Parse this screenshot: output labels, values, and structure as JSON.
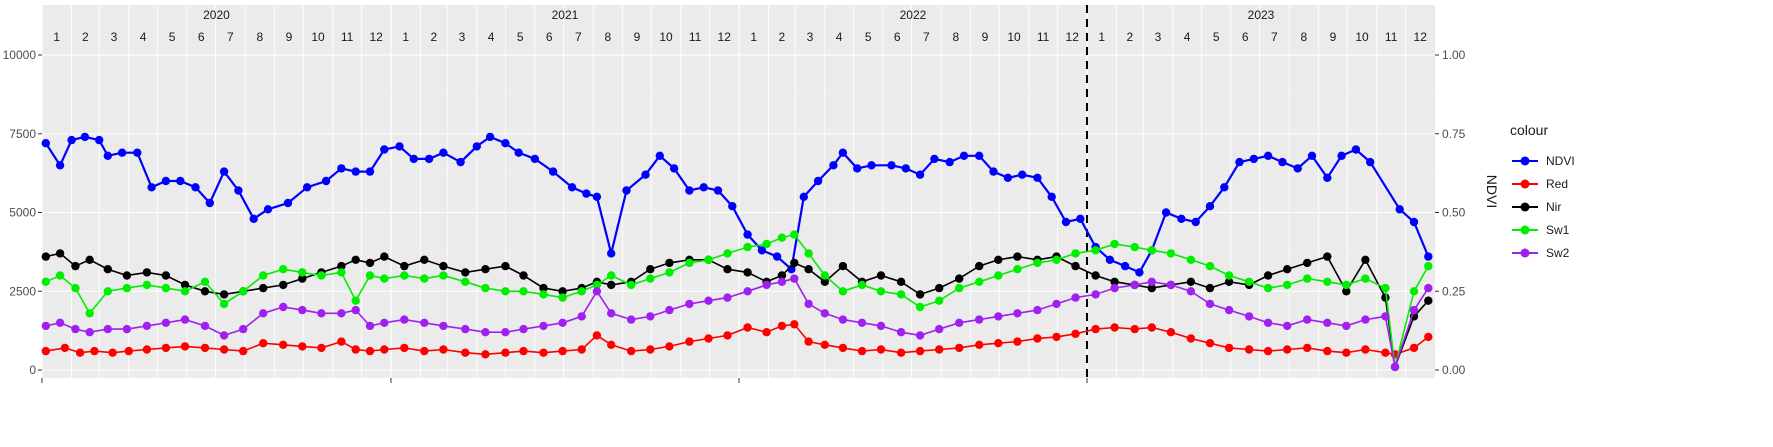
{
  "chart_data": {
    "type": "line",
    "title": "",
    "xlabel": "",
    "ylabel_left": "",
    "ylabel_right": "NDVI",
    "xlim": [
      "2020-01-01",
      "2024-01-01"
    ],
    "ylim_left": [
      0,
      10000
    ],
    "ylim_right": [
      0,
      1
    ],
    "left_ticks": [
      0,
      2500,
      5000,
      7500,
      10000
    ],
    "left_tick_labels": [
      "0",
      "2500",
      "5000",
      "7500",
      "10000"
    ],
    "right_ticks": [
      0,
      0.25,
      0.5,
      0.75,
      1
    ],
    "right_tick_labels": [
      "0.00",
      "0.25",
      "0.50",
      "0.75",
      "1.00"
    ],
    "years": [
      "2020",
      "2021",
      "2022",
      "2023"
    ],
    "months": [
      "1",
      "2",
      "3",
      "4",
      "5",
      "6",
      "7",
      "8",
      "9",
      "10",
      "11",
      "12"
    ],
    "vline_date": "2023-01-01",
    "grid": true,
    "legend": {
      "title": "colour",
      "position": "right"
    },
    "colors": {
      "NDVI": "#0000ff",
      "Red": "#ff0000",
      "Nir": "#000000",
      "Sw1": "#00ee00",
      "Sw2": "#a020f0"
    },
    "series": [
      {
        "name": "NDVI",
        "axis": "right",
        "x": [
          "2020-01-05",
          "2020-01-20",
          "2020-02-01",
          "2020-02-15",
          "2020-03-01",
          "2020-03-10",
          "2020-03-25",
          "2020-04-10",
          "2020-04-25",
          "2020-05-10",
          "2020-05-25",
          "2020-06-10",
          "2020-06-25",
          "2020-07-10",
          "2020-07-25",
          "2020-08-10",
          "2020-08-25",
          "2020-09-15",
          "2020-10-05",
          "2020-10-25",
          "2020-11-10",
          "2020-11-25",
          "2020-12-10",
          "2020-12-25",
          "2021-01-10",
          "2021-01-25",
          "2021-02-10",
          "2021-02-25",
          "2021-03-15",
          "2021-04-01",
          "2021-04-15",
          "2021-05-01",
          "2021-05-15",
          "2021-06-01",
          "2021-06-20",
          "2021-07-10",
          "2021-07-25",
          "2021-08-05",
          "2021-08-20",
          "2021-09-05",
          "2021-09-25",
          "2021-10-10",
          "2021-10-25",
          "2021-11-10",
          "2021-11-25",
          "2021-12-10",
          "2021-12-25",
          "2022-01-10",
          "2022-01-25",
          "2022-02-10",
          "2022-02-25",
          "2022-03-10",
          "2022-03-25",
          "2022-04-10",
          "2022-04-20",
          "2022-05-05",
          "2022-05-20",
          "2022-06-10",
          "2022-06-25",
          "2022-07-10",
          "2022-07-25",
          "2022-08-10",
          "2022-08-25",
          "2022-09-10",
          "2022-09-25",
          "2022-10-10",
          "2022-10-25",
          "2022-11-10",
          "2022-11-25",
          "2022-12-10",
          "2022-12-25",
          "2023-01-10",
          "2023-01-25",
          "2023-02-10",
          "2023-02-25",
          "2023-03-10",
          "2023-03-25",
          "2023-04-10",
          "2023-04-25",
          "2023-05-10",
          "2023-05-25",
          "2023-06-10",
          "2023-06-25",
          "2023-07-10",
          "2023-07-25",
          "2023-08-10",
          "2023-08-25",
          "2023-09-10",
          "2023-09-25",
          "2023-10-10",
          "2023-10-25",
          "2023-11-25",
          "2023-12-10",
          "2023-12-25"
        ],
        "values": [
          0.72,
          0.65,
          0.73,
          0.74,
          0.73,
          0.68,
          0.69,
          0.69,
          0.58,
          0.6,
          0.6,
          0.58,
          0.53,
          0.63,
          0.57,
          0.48,
          0.51,
          0.53,
          0.58,
          0.6,
          0.64,
          0.63,
          0.63,
          0.7,
          0.71,
          0.67,
          0.67,
          0.69,
          0.66,
          0.71,
          0.74,
          0.72,
          0.69,
          0.67,
          0.63,
          0.58,
          0.56,
          0.55,
          0.37,
          0.57,
          0.62,
          0.68,
          0.64,
          0.57,
          0.58,
          0.57,
          0.52,
          0.43,
          0.38,
          0.36,
          0.32,
          0.55,
          0.6,
          0.65,
          0.69,
          0.64,
          0.65,
          0.65,
          0.64,
          0.62,
          0.67,
          0.66,
          0.68,
          0.68,
          0.63,
          0.61,
          0.62,
          0.61,
          0.55,
          0.47,
          0.48,
          0.39,
          0.35,
          0.33,
          0.31,
          0.38,
          0.5,
          0.48,
          0.47,
          0.52,
          0.58,
          0.66,
          0.67,
          0.68,
          0.66,
          0.64,
          0.68,
          0.61,
          0.68,
          0.7,
          0.66,
          0.51,
          0.47,
          0.36
        ]
      },
      {
        "name": "Red",
        "axis": "left",
        "x": [
          "2020-01-05",
          "2020-01-25",
          "2020-02-10",
          "2020-02-25",
          "2020-03-15",
          "2020-04-01",
          "2020-04-20",
          "2020-05-10",
          "2020-05-30",
          "2020-06-20",
          "2020-07-10",
          "2020-07-30",
          "2020-08-20",
          "2020-09-10",
          "2020-09-30",
          "2020-10-20",
          "2020-11-10",
          "2020-11-25",
          "2020-12-10",
          "2020-12-25",
          "2021-01-15",
          "2021-02-05",
          "2021-02-25",
          "2021-03-20",
          "2021-04-10",
          "2021-05-01",
          "2021-05-20",
          "2021-06-10",
          "2021-06-30",
          "2021-07-20",
          "2021-08-05",
          "2021-08-20",
          "2021-09-10",
          "2021-09-30",
          "2021-10-20",
          "2021-11-10",
          "2021-11-30",
          "2021-12-20",
          "2022-01-10",
          "2022-01-30",
          "2022-02-15",
          "2022-02-28",
          "2022-03-15",
          "2022-04-01",
          "2022-04-20",
          "2022-05-10",
          "2022-05-30",
          "2022-06-20",
          "2022-07-10",
          "2022-07-30",
          "2022-08-20",
          "2022-09-10",
          "2022-09-30",
          "2022-10-20",
          "2022-11-10",
          "2022-11-30",
          "2022-12-20",
          "2023-01-10",
          "2023-01-30",
          "2023-02-20",
          "2023-03-10",
          "2023-03-30",
          "2023-04-20",
          "2023-05-10",
          "2023-05-30",
          "2023-06-20",
          "2023-07-10",
          "2023-07-30",
          "2023-08-20",
          "2023-09-10",
          "2023-09-30",
          "2023-10-20",
          "2023-11-10",
          "2023-11-20",
          "2023-12-10",
          "2023-12-25"
        ],
        "values": [
          600,
          700,
          550,
          600,
          550,
          600,
          650,
          700,
          750,
          700,
          650,
          600,
          850,
          800,
          750,
          700,
          900,
          650,
          600,
          650,
          700,
          600,
          650,
          550,
          500,
          550,
          600,
          550,
          600,
          650,
          1100,
          800,
          600,
          650,
          750,
          900,
          1000,
          1100,
          1350,
          1200,
          1400,
          1450,
          900,
          800,
          700,
          600,
          650,
          550,
          600,
          650,
          700,
          800,
          850,
          900,
          1000,
          1050,
          1150,
          1300,
          1350,
          1300,
          1350,
          1200,
          1000,
          850,
          700,
          650,
          600,
          650,
          700,
          600,
          550,
          650,
          550,
          500,
          700,
          1050
        ]
      },
      {
        "name": "Nir",
        "axis": "left",
        "x": [
          "2020-01-05",
          "2020-01-20",
          "2020-02-05",
          "2020-02-20",
          "2020-03-10",
          "2020-03-30",
          "2020-04-20",
          "2020-05-10",
          "2020-05-30",
          "2020-06-20",
          "2020-07-10",
          "2020-07-30",
          "2020-08-20",
          "2020-09-10",
          "2020-09-30",
          "2020-10-20",
          "2020-11-10",
          "2020-11-25",
          "2020-12-10",
          "2020-12-25",
          "2021-01-15",
          "2021-02-05",
          "2021-02-25",
          "2021-03-20",
          "2021-04-10",
          "2021-05-01",
          "2021-05-20",
          "2021-06-10",
          "2021-06-30",
          "2021-07-20",
          "2021-08-05",
          "2021-08-20",
          "2021-09-10",
          "2021-09-30",
          "2021-10-20",
          "2021-11-10",
          "2021-11-30",
          "2021-12-20",
          "2022-01-10",
          "2022-01-30",
          "2022-02-15",
          "2022-02-28",
          "2022-03-15",
          "2022-04-01",
          "2022-04-20",
          "2022-05-10",
          "2022-05-30",
          "2022-06-20",
          "2022-07-10",
          "2022-07-30",
          "2022-08-20",
          "2022-09-10",
          "2022-09-30",
          "2022-10-20",
          "2022-11-10",
          "2022-11-30",
          "2022-12-20",
          "2023-01-10",
          "2023-01-30",
          "2023-02-20",
          "2023-03-10",
          "2023-03-30",
          "2023-04-20",
          "2023-05-10",
          "2023-05-30",
          "2023-06-20",
          "2023-07-10",
          "2023-07-30",
          "2023-08-20",
          "2023-09-10",
          "2023-09-30",
          "2023-10-20",
          "2023-11-10",
          "2023-11-20",
          "2023-12-10",
          "2023-12-25"
        ],
        "values": [
          3600,
          3700,
          3300,
          3500,
          3200,
          3000,
          3100,
          3000,
          2700,
          2500,
          2400,
          2500,
          2600,
          2700,
          2900,
          3100,
          3300,
          3500,
          3400,
          3600,
          3300,
          3500,
          3300,
          3100,
          3200,
          3300,
          3000,
          2600,
          2500,
          2600,
          2800,
          2700,
          2800,
          3200,
          3400,
          3500,
          3500,
          3200,
          3100,
          2800,
          3000,
          3400,
          3200,
          2800,
          3300,
          2800,
          3000,
          2800,
          2400,
          2600,
          2900,
          3300,
          3500,
          3600,
          3500,
          3600,
          3300,
          3000,
          2800,
          2700,
          2600,
          2700,
          2800,
          2600,
          2800,
          2700,
          3000,
          3200,
          3400,
          3600,
          2500,
          3500,
          2300,
          100,
          1700,
          2200
        ]
      },
      {
        "name": "Sw1",
        "axis": "left",
        "x": [
          "2020-01-05",
          "2020-01-20",
          "2020-02-05",
          "2020-02-20",
          "2020-03-10",
          "2020-03-30",
          "2020-04-20",
          "2020-05-10",
          "2020-05-30",
          "2020-06-20",
          "2020-07-10",
          "2020-07-30",
          "2020-08-20",
          "2020-09-10",
          "2020-09-30",
          "2020-10-20",
          "2020-11-10",
          "2020-11-25",
          "2020-12-10",
          "2020-12-25",
          "2021-01-15",
          "2021-02-05",
          "2021-02-25",
          "2021-03-20",
          "2021-04-10",
          "2021-05-01",
          "2021-05-20",
          "2021-06-10",
          "2021-06-30",
          "2021-07-20",
          "2021-08-05",
          "2021-08-20",
          "2021-09-10",
          "2021-09-30",
          "2021-10-20",
          "2021-11-10",
          "2021-11-30",
          "2021-12-20",
          "2022-01-10",
          "2022-01-30",
          "2022-02-15",
          "2022-02-28",
          "2022-03-15",
          "2022-04-01",
          "2022-04-20",
          "2022-05-10",
          "2022-05-30",
          "2022-06-20",
          "2022-07-10",
          "2022-07-30",
          "2022-08-20",
          "2022-09-10",
          "2022-09-30",
          "2022-10-20",
          "2022-11-10",
          "2022-11-30",
          "2022-12-20",
          "2023-01-10",
          "2023-01-30",
          "2023-02-20",
          "2023-03-10",
          "2023-03-30",
          "2023-04-20",
          "2023-05-10",
          "2023-05-30",
          "2023-06-20",
          "2023-07-10",
          "2023-07-30",
          "2023-08-20",
          "2023-09-10",
          "2023-09-30",
          "2023-10-20",
          "2023-11-10",
          "2023-11-20",
          "2023-12-10",
          "2023-12-25"
        ],
        "values": [
          2800,
          3000,
          2600,
          1800,
          2500,
          2600,
          2700,
          2600,
          2500,
          2800,
          2100,
          2500,
          3000,
          3200,
          3100,
          3000,
          3100,
          2200,
          3000,
          2900,
          3000,
          2900,
          3000,
          2800,
          2600,
          2500,
          2500,
          2400,
          2300,
          2500,
          2700,
          3000,
          2700,
          2900,
          3100,
          3400,
          3500,
          3700,
          3900,
          4000,
          4200,
          4300,
          3700,
          3000,
          2500,
          2700,
          2500,
          2400,
          2000,
          2200,
          2600,
          2800,
          3000,
          3200,
          3400,
          3500,
          3700,
          3800,
          4000,
          3900,
          3800,
          3700,
          3500,
          3300,
          3000,
          2800,
          2600,
          2700,
          2900,
          2800,
          2700,
          2900,
          2600,
          100,
          2500,
          3300
        ]
      },
      {
        "name": "Sw2",
        "axis": "left",
        "x": [
          "2020-01-05",
          "2020-01-20",
          "2020-02-05",
          "2020-02-20",
          "2020-03-10",
          "2020-03-30",
          "2020-04-20",
          "2020-05-10",
          "2020-05-30",
          "2020-06-20",
          "2020-07-10",
          "2020-07-30",
          "2020-08-20",
          "2020-09-10",
          "2020-09-30",
          "2020-10-20",
          "2020-11-10",
          "2020-11-25",
          "2020-12-10",
          "2020-12-25",
          "2021-01-15",
          "2021-02-05",
          "2021-02-25",
          "2021-03-20",
          "2021-04-10",
          "2021-05-01",
          "2021-05-20",
          "2021-06-10",
          "2021-06-30",
          "2021-07-20",
          "2021-08-05",
          "2021-08-20",
          "2021-09-10",
          "2021-09-30",
          "2021-10-20",
          "2021-11-10",
          "2021-11-30",
          "2021-12-20",
          "2022-01-10",
          "2022-01-30",
          "2022-02-15",
          "2022-02-28",
          "2022-03-15",
          "2022-04-01",
          "2022-04-20",
          "2022-05-10",
          "2022-05-30",
          "2022-06-20",
          "2022-07-10",
          "2022-07-30",
          "2022-08-20",
          "2022-09-10",
          "2022-09-30",
          "2022-10-20",
          "2022-11-10",
          "2022-11-30",
          "2022-12-20",
          "2023-01-10",
          "2023-01-30",
          "2023-02-20",
          "2023-03-10",
          "2023-03-30",
          "2023-04-20",
          "2023-05-10",
          "2023-05-30",
          "2023-06-20",
          "2023-07-10",
          "2023-07-30",
          "2023-08-20",
          "2023-09-10",
          "2023-09-30",
          "2023-10-20",
          "2023-11-10",
          "2023-11-20",
          "2023-12-10",
          "2023-12-25"
        ],
        "values": [
          1400,
          1500,
          1300,
          1200,
          1300,
          1300,
          1400,
          1500,
          1600,
          1400,
          1100,
          1300,
          1800,
          2000,
          1900,
          1800,
          1800,
          1900,
          1400,
          1500,
          1600,
          1500,
          1400,
          1300,
          1200,
          1200,
          1300,
          1400,
          1500,
          1700,
          2500,
          1800,
          1600,
          1700,
          1900,
          2100,
          2200,
          2300,
          2500,
          2700,
          2800,
          2900,
          2100,
          1800,
          1600,
          1500,
          1400,
          1200,
          1100,
          1300,
          1500,
          1600,
          1700,
          1800,
          1900,
          2100,
          2300,
          2400,
          2600,
          2700,
          2800,
          2700,
          2500,
          2100,
          1900,
          1700,
          1500,
          1400,
          1600,
          1500,
          1400,
          1600,
          1700,
          100,
          1900,
          2600
        ]
      }
    ]
  }
}
